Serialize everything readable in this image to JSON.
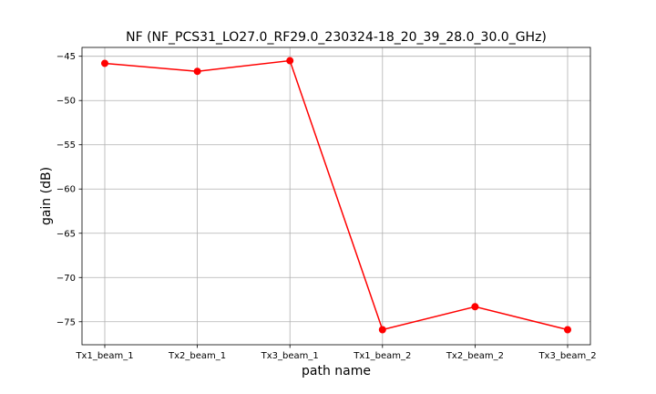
{
  "chart_data": {
    "type": "line",
    "title": "NF (NF_PCS31_LO27.0_RF29.0_230324-18_20_39_28.0_30.0_GHz)",
    "xlabel": "path name",
    "ylabel": "gain (dB)",
    "categories": [
      "Tx1_beam_1",
      "Tx2_beam_1",
      "Tx3_beam_1",
      "Tx1_beam_2",
      "Tx2_beam_2",
      "Tx3_beam_2"
    ],
    "series": [
      {
        "color": "#ff0000",
        "marker": "circle",
        "values": [
          -45.8,
          -46.7,
          -45.5,
          -75.9,
          -73.3,
          -75.9
        ]
      }
    ],
    "ylim": [
      -77.6,
      -44.0
    ],
    "yticks": [
      -45,
      -50,
      -55,
      -60,
      -65,
      -70,
      -75
    ],
    "ytick_labels": [
      "−45",
      "−50",
      "−55",
      "−60",
      "−65",
      "−70",
      "−75"
    ],
    "grid": true
  }
}
